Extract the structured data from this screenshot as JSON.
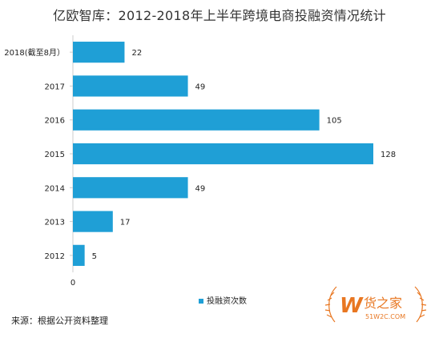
{
  "page": {
    "title": "亿欧智库：2012-2018年上半年跨境电商投融资情况统计",
    "source": "来源：根据公开资料整理"
  },
  "watermark": {
    "logo_letter": "W",
    "name": "货之家",
    "url": "51W2C.COM"
  },
  "colors": {
    "bar": "#1f9fd6",
    "axis": "#cccccc",
    "watermark": "#e87722"
  },
  "chart_data": {
    "type": "bar",
    "orientation": "horizontal",
    "categories": [
      "2018(截至8月）",
      "2017",
      "2016",
      "2015",
      "2014",
      "2013",
      "2012"
    ],
    "series": [
      {
        "name": "投融资次数",
        "values": [
          22,
          49,
          105,
          128,
          49,
          17,
          5
        ]
      }
    ],
    "x_tick_labels": [
      "0"
    ],
    "xlim": [
      0,
      128
    ],
    "grid": false,
    "legend_position": "bottom-center",
    "data_labels": true
  }
}
